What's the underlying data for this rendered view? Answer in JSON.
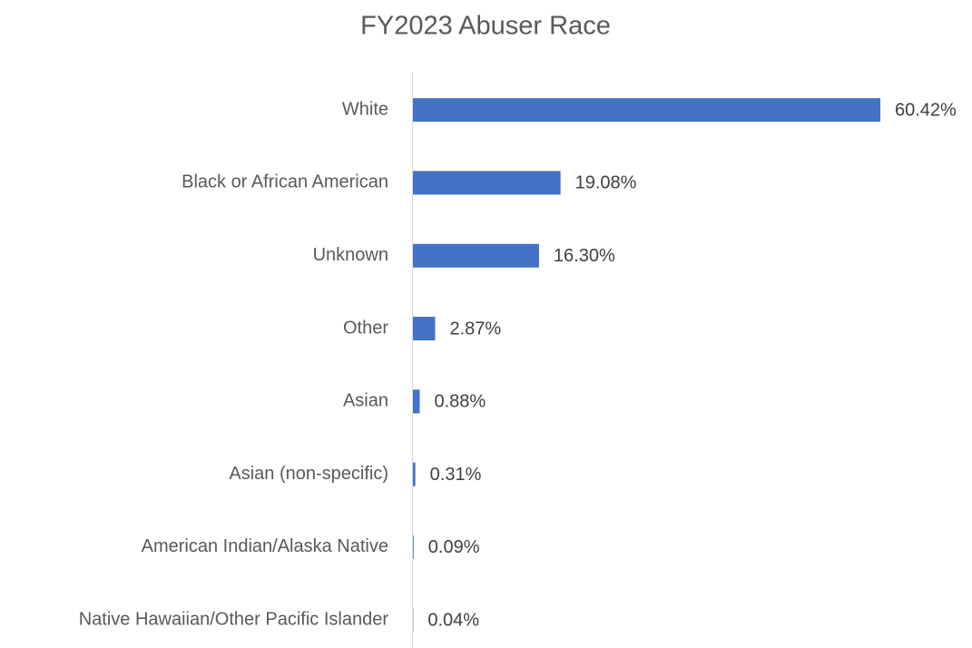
{
  "chart_data": {
    "type": "hbar",
    "title": "FY2023 Abuser Race",
    "categories": [
      "White",
      "Black or African American",
      "Unknown",
      "Other",
      "Asian",
      "Asian (non-specific)",
      "American Indian/Alaska Native",
      "Native Hawaiian/Other Pacific Islander"
    ],
    "values": [
      60.42,
      19.08,
      16.3,
      2.87,
      0.88,
      0.31,
      0.09,
      0.04
    ],
    "value_labels": [
      "60.42%",
      "19.08%",
      "16.30%",
      "2.87%",
      "0.88%",
      "0.31%",
      "0.09%",
      "0.04%"
    ],
    "color": "#4472c4"
  }
}
